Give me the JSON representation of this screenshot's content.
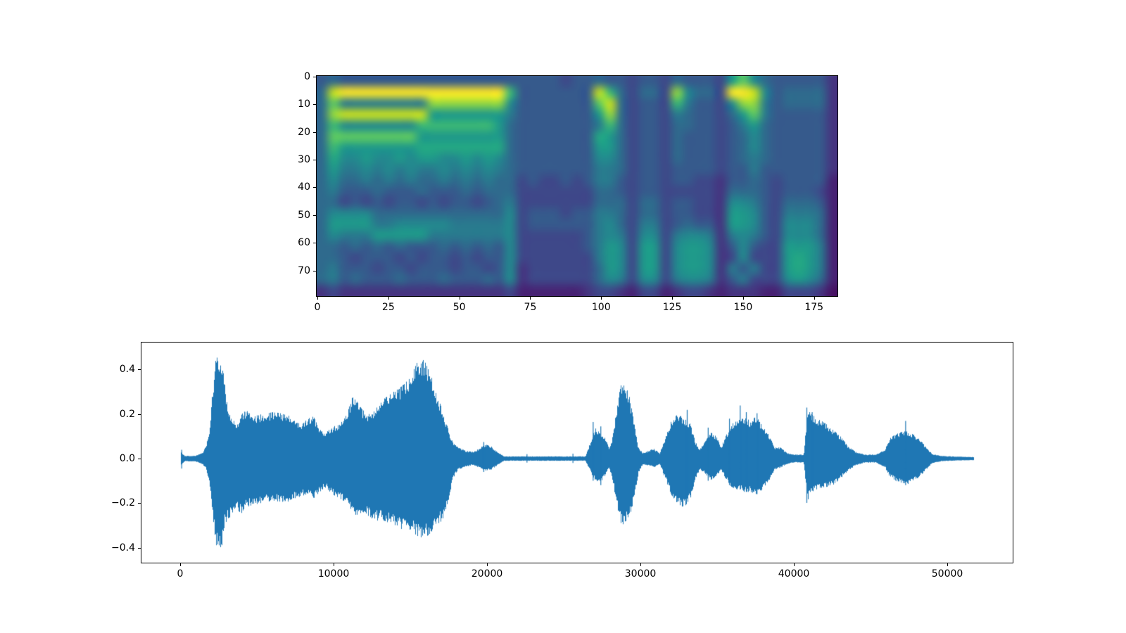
{
  "figure": {
    "background": "#ffffff",
    "title": ""
  },
  "chart_data": [
    {
      "type": "heatmap",
      "name": "mel-spectrogram",
      "title": "",
      "xlabel": "",
      "ylabel": "",
      "grid": false,
      "x_range": [
        -0.5,
        183.5
      ],
      "y_range": [
        -0.5,
        79.5
      ],
      "n_frames": 184,
      "n_bins": 80,
      "x_ticks": [
        0,
        25,
        50,
        75,
        100,
        125,
        150,
        175
      ],
      "x_tick_labels": [
        "0",
        "25",
        "50",
        "75",
        "100",
        "125",
        "150",
        "175"
      ],
      "y_ticks": [
        0,
        10,
        20,
        30,
        40,
        50,
        60,
        70
      ],
      "y_tick_labels": [
        "0",
        "10",
        "20",
        "30",
        "40",
        "50",
        "60",
        "70"
      ],
      "colormap": "viridis",
      "colormap_hex": [
        "#440154",
        "#471264",
        "#472374",
        "#453580",
        "#3e4889",
        "#365a8c",
        "#2f6a8d",
        "#297a8e",
        "#23898e",
        "#1f998a",
        "#24a883",
        "#3cb875",
        "#5ec962",
        "#93d741",
        "#c8e020",
        "#fde725"
      ],
      "rows_span_bins": 4,
      "cols_span_frames": 4,
      "intensity_rows": [
        [
          "56",
          "555555555555555",
          "5",
          "555545",
          "5",
          "6554554655549c865",
          "5555",
          "3"
        ],
        [
          "6e",
          "fffffffffffffff",
          "b",
          "555555",
          "5",
          "eb64664d8664ffe85",
          "6666",
          "3"
        ],
        [
          "6c",
          "77777777ddddddd",
          "8",
          "555555",
          "5",
          "ce64554b75548dd75",
          "6666",
          "3"
        ],
        [
          "6d",
          "eeeeeeee9999999",
          "7",
          "555555",
          "5",
          "9d645547655469c75",
          "5555",
          "3"
        ],
        [
          "6b",
          "8888888bbbbbbb9",
          "6",
          "555555",
          "5",
          "7b645546655457965",
          "5555",
          "3"
        ],
        [
          "6c",
          "ccccccc99999999",
          "6",
          "555555",
          "5",
          "a9645546555456865",
          "5555",
          "3"
        ],
        [
          "6b",
          "9999999aaaaaaaa",
          "6",
          "555555",
          "5",
          "99645546555456865",
          "5555",
          "3"
        ],
        [
          "6a",
          "889889899889898",
          "6",
          "555555",
          "5",
          "88645546555456765",
          "5555",
          "3"
        ],
        [
          "69",
          "778787877878787",
          "6",
          "555555",
          "5",
          "77645545555455755",
          "5555",
          "3"
        ],
        [
          "68",
          "667676766767676",
          "6",
          "454454",
          "5",
          "77545545544355654",
          "5555",
          "2"
        ],
        [
          "67",
          "555655565556566",
          "6",
          "444444",
          "4",
          "66545544444366654",
          "5554",
          "2"
        ],
        [
          "66",
          "454545545455456",
          "7",
          "444444",
          "4",
          "66646645544388754",
          "6665",
          "2"
        ],
        [
          "68",
          "888666666666666",
          "8",
          "455545",
          "5",
          "77646645544399854",
          "7776",
          "2"
        ],
        [
          "69",
          "999778888877777",
          "8",
          "455555",
          "5",
          "78647745655399854",
          "8886",
          "2"
        ],
        [
          "68",
          "777999997777777",
          "8",
          "444444",
          "5",
          "78748847887378754",
          "8886",
          "2"
        ],
        [
          "66",
          "565656555656565",
          "8",
          "444444",
          "5",
          "79849948998358544",
          "9997",
          "2"
        ],
        [
          "66",
          "545554545545455",
          "8",
          "444444",
          "4",
          "79849948998348444",
          "9a97",
          "2"
        ],
        [
          "67",
          "555455455545545",
          "8",
          "344444",
          "4",
          "69849948998375744",
          "9a97",
          "2"
        ],
        [
          "67",
          "565556555655565",
          "8",
          "344444",
          "4",
          "68748847887357444",
          "8986",
          "2"
        ],
        [
          "34",
          "333333333333333",
          "4",
          "222222",
          "3",
          "44324423443233322",
          "4443",
          "1"
        ]
      ]
    },
    {
      "type": "line",
      "name": "waveform",
      "title": "",
      "xlabel": "",
      "ylabel": "",
      "grid": false,
      "series_color": "#1f77b4",
      "xlim": [
        -2570,
        54310
      ],
      "ylim": [
        -0.47,
        0.524
      ],
      "n_samples": 51740,
      "x_ticks": [
        0,
        10000,
        20000,
        30000,
        40000,
        50000
      ],
      "x_tick_labels": [
        "0",
        "10000",
        "20000",
        "30000",
        "40000",
        "50000"
      ],
      "y_ticks": [
        -0.4,
        -0.2,
        0.0,
        0.2,
        0.4
      ],
      "y_tick_labels": [
        "−0.4",
        "−0.2",
        "0.0",
        "0.2",
        "0.4"
      ],
      "envelope": [
        [
          0,
          0.03,
          0.03
        ],
        [
          250,
          0.012,
          0.012
        ],
        [
          900,
          0.013,
          0.013
        ],
        [
          1400,
          0.025,
          0.025
        ],
        [
          1650,
          0.06,
          0.05
        ],
        [
          1850,
          0.13,
          0.11
        ],
        [
          2050,
          0.3,
          0.24
        ],
        [
          2250,
          0.44,
          0.38
        ],
        [
          2450,
          0.478,
          0.425
        ],
        [
          2650,
          0.44,
          0.4
        ],
        [
          2850,
          0.34,
          0.3
        ],
        [
          3050,
          0.24,
          0.27
        ],
        [
          3350,
          0.18,
          0.26
        ],
        [
          3650,
          0.16,
          0.23
        ],
        [
          3950,
          0.21,
          0.25
        ],
        [
          4250,
          0.22,
          0.22
        ],
        [
          4650,
          0.19,
          0.21
        ],
        [
          5250,
          0.2,
          0.2
        ],
        [
          6050,
          0.21,
          0.19
        ],
        [
          6850,
          0.2,
          0.2
        ],
        [
          7450,
          0.18,
          0.18
        ],
        [
          7850,
          0.15,
          0.17
        ],
        [
          8250,
          0.18,
          0.16
        ],
        [
          8650,
          0.19,
          0.18
        ],
        [
          9050,
          0.13,
          0.15
        ],
        [
          9450,
          0.12,
          0.13
        ],
        [
          9850,
          0.14,
          0.16
        ],
        [
          10350,
          0.16,
          0.18
        ],
        [
          10850,
          0.2,
          0.2
        ],
        [
          11150,
          0.28,
          0.24
        ],
        [
          11450,
          0.26,
          0.26
        ],
        [
          11850,
          0.22,
          0.24
        ],
        [
          12250,
          0.2,
          0.26
        ],
        [
          12650,
          0.22,
          0.28
        ],
        [
          13250,
          0.27,
          0.28
        ],
        [
          13850,
          0.3,
          0.3
        ],
        [
          14450,
          0.33,
          0.32
        ],
        [
          15050,
          0.38,
          0.33
        ],
        [
          15450,
          0.44,
          0.35
        ],
        [
          15850,
          0.45,
          0.36
        ],
        [
          16250,
          0.4,
          0.34
        ],
        [
          16650,
          0.3,
          0.3
        ],
        [
          17050,
          0.22,
          0.28
        ],
        [
          17450,
          0.13,
          0.19
        ],
        [
          17750,
          0.07,
          0.09
        ],
        [
          18100,
          0.05,
          0.05
        ],
        [
          18600,
          0.035,
          0.035
        ],
        [
          19100,
          0.03,
          0.03
        ],
        [
          19550,
          0.05,
          0.045
        ],
        [
          19850,
          0.065,
          0.055
        ],
        [
          20250,
          0.055,
          0.05
        ],
        [
          20650,
          0.03,
          0.03
        ],
        [
          21100,
          0.01,
          0.01
        ],
        [
          26400,
          0.01,
          0.01
        ],
        [
          26800,
          0.09,
          0.07
        ],
        [
          27050,
          0.14,
          0.1
        ],
        [
          27350,
          0.12,
          0.11
        ],
        [
          27650,
          0.1,
          0.08
        ],
        [
          27950,
          0.045,
          0.045
        ],
        [
          28150,
          0.09,
          0.09
        ],
        [
          28400,
          0.21,
          0.19
        ],
        [
          28700,
          0.33,
          0.29
        ],
        [
          28950,
          0.335,
          0.3
        ],
        [
          29250,
          0.29,
          0.27
        ],
        [
          29550,
          0.17,
          0.19
        ],
        [
          29850,
          0.05,
          0.07
        ],
        [
          30150,
          0.025,
          0.025
        ],
        [
          30850,
          0.045,
          0.04
        ],
        [
          31250,
          0.025,
          0.025
        ],
        [
          31650,
          0.1,
          0.1
        ],
        [
          32050,
          0.18,
          0.17
        ],
        [
          32450,
          0.2,
          0.21
        ],
        [
          32850,
          0.18,
          0.22
        ],
        [
          33250,
          0.16,
          0.18
        ],
        [
          33550,
          0.08,
          0.1
        ],
        [
          33850,
          0.04,
          0.05
        ],
        [
          34250,
          0.08,
          0.07
        ],
        [
          34550,
          0.12,
          0.1
        ],
        [
          34950,
          0.1,
          0.08
        ],
        [
          35250,
          0.05,
          0.05
        ],
        [
          35550,
          0.1,
          0.09
        ],
        [
          35950,
          0.16,
          0.13
        ],
        [
          36350,
          0.17,
          0.14
        ],
        [
          36750,
          0.19,
          0.15
        ],
        [
          37150,
          0.17,
          0.15
        ],
        [
          37550,
          0.19,
          0.16
        ],
        [
          37950,
          0.15,
          0.14
        ],
        [
          38350,
          0.11,
          0.11
        ],
        [
          38750,
          0.05,
          0.05
        ],
        [
          39150,
          0.05,
          0.04
        ],
        [
          39550,
          0.025,
          0.025
        ],
        [
          40050,
          0.018,
          0.018
        ],
        [
          40650,
          0.018,
          0.018
        ],
        [
          40900,
          0.22,
          0.19
        ],
        [
          41150,
          0.2,
          0.15
        ],
        [
          41550,
          0.18,
          0.14
        ],
        [
          42050,
          0.16,
          0.13
        ],
        [
          42550,
          0.13,
          0.12
        ],
        [
          43050,
          0.1,
          0.09
        ],
        [
          43550,
          0.055,
          0.055
        ],
        [
          44050,
          0.03,
          0.03
        ],
        [
          44650,
          0.018,
          0.018
        ],
        [
          45350,
          0.018,
          0.018
        ],
        [
          45950,
          0.04,
          0.04
        ],
        [
          46250,
          0.09,
          0.08
        ],
        [
          46650,
          0.11,
          0.1
        ],
        [
          47050,
          0.12,
          0.11
        ],
        [
          47450,
          0.125,
          0.115
        ],
        [
          47850,
          0.11,
          0.1
        ],
        [
          48250,
          0.085,
          0.08
        ],
        [
          48650,
          0.05,
          0.05
        ],
        [
          49050,
          0.02,
          0.02
        ],
        [
          49650,
          0.012,
          0.012
        ],
        [
          50550,
          0.009,
          0.009
        ],
        [
          51740,
          0.007,
          0.007
        ]
      ],
      "spikes": [
        [
          60,
          0.04,
          0.045
        ],
        [
          19780,
          0.075,
          0.06
        ],
        [
          22600,
          0.02,
          0.018
        ],
        [
          25600,
          0.022,
          0.02
        ],
        [
          26920,
          0.165,
          0.1
        ],
        [
          27420,
          0.145,
          0.12
        ],
        [
          33060,
          0.22,
          0.18
        ],
        [
          34430,
          0.14,
          0.1
        ],
        [
          35820,
          0.18,
          0.12
        ],
        [
          36520,
          0.24,
          0.14
        ],
        [
          36920,
          0.21,
          0.15
        ],
        [
          37620,
          0.205,
          0.16
        ],
        [
          40870,
          0.23,
          0.2
        ],
        [
          41220,
          0.21,
          0.145
        ],
        [
          47320,
          0.17,
          0.12
        ]
      ]
    }
  ]
}
